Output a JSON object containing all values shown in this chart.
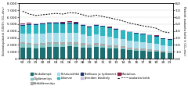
{
  "years": [
    "90",
    "00",
    "01",
    "02",
    "03",
    "04",
    "05",
    "06",
    "07",
    "08",
    "09",
    "10",
    "11",
    "12",
    "13",
    "14",
    "15",
    "16",
    "17",
    "18",
    "19",
    "20",
    "21"
  ],
  "kaukolampo": [
    1650,
    1550,
    1500,
    1600,
    1700,
    1750,
    1700,
    1800,
    1750,
    1650,
    1550,
    1700,
    1600,
    1500,
    1450,
    1350,
    1250,
    1150,
    1100,
    1050,
    1000,
    880,
    850
  ],
  "oljylammitys": [
    550,
    480,
    460,
    440,
    420,
    400,
    380,
    360,
    340,
    310,
    285,
    270,
    255,
    235,
    215,
    195,
    175,
    158,
    142,
    128,
    115,
    100,
    88
  ],
  "sahkolammitys": [
    170,
    220,
    230,
    240,
    250,
    260,
    265,
    270,
    275,
    265,
    255,
    270,
    260,
    250,
    240,
    230,
    215,
    205,
    195,
    185,
    175,
    165,
    155
  ],
  "kulutussahko": [
    1300,
    1400,
    1400,
    1400,
    1400,
    1380,
    1360,
    1360,
    1340,
    1280,
    1210,
    1270,
    1220,
    1160,
    1100,
    1040,
    980,
    950,
    910,
    875,
    840,
    770,
    730
  ],
  "liikenne": [
    1050,
    1230,
    1250,
    1260,
    1280,
    1300,
    1320,
    1340,
    1330,
    1300,
    1270,
    1280,
    1270,
    1260,
    1245,
    1215,
    1190,
    1170,
    1150,
    1130,
    1090,
    920,
    900
  ],
  "teollisuus": [
    180,
    160,
    155,
    150,
    145,
    140,
    135,
    130,
    125,
    120,
    110,
    115,
    110,
    106,
    102,
    97,
    92,
    87,
    83,
    79,
    75,
    70,
    65
  ],
  "jatteiden": [
    130,
    110,
    108,
    105,
    102,
    98,
    95,
    92,
    88,
    84,
    80,
    76,
    72,
    68,
    64,
    59,
    54,
    50,
    47,
    45,
    43,
    41,
    39
  ],
  "maatalous": [
    40,
    36,
    35,
    35,
    34,
    33,
    33,
    32,
    32,
    31,
    30,
    30,
    29,
    29,
    28,
    28,
    27,
    27,
    26,
    26,
    25,
    24,
    23
  ],
  "dotted_line": [
    6.85,
    6.45,
    6.25,
    6.35,
    6.45,
    6.55,
    6.45,
    6.65,
    6.6,
    6.35,
    6.1,
    6.3,
    6.1,
    5.9,
    5.7,
    5.45,
    5.15,
    4.95,
    4.75,
    4.6,
    4.4,
    3.9,
    3.75
  ],
  "colors": {
    "kaukolampo": "#1c6e70",
    "oljylammitys": "#83c5c5",
    "sahkolammitys": "#aaaaaa",
    "kulutussahko": "#a8dce8",
    "liikenne": "#2eb5c0",
    "teollisuus": "#1a3575",
    "jatteiden": "#c5b8d5",
    "maatalous": "#8c2244"
  },
  "ylim_left": [
    0,
    8000
  ],
  "ylim_right": [
    0.0,
    8.0
  ],
  "yticks_left": [
    0,
    1000,
    2000,
    3000,
    4000,
    5000,
    6000,
    7000,
    8000
  ],
  "yticks_right": [
    0.0,
    1.0,
    2.0,
    3.0,
    4.0,
    5.0,
    6.0,
    7.0,
    8.0
  ],
  "legend_labels": [
    "Kaukolämpö",
    "Öljylämmitys",
    "Sähkölämmitys",
    "Kulutussähkö",
    "Liikenne",
    "Teollisuus ja työkoneet",
    "Jätteiden käsittely",
    "Maatalous",
    "─ ─ ─ asukasta kohti"
  ],
  "ylabel_left": "Kokonaispäästöt (1000 t CO₂-ekv.)",
  "ylabel_right": "Päästöt asukasta kohti (t CO₂-ekv.)"
}
